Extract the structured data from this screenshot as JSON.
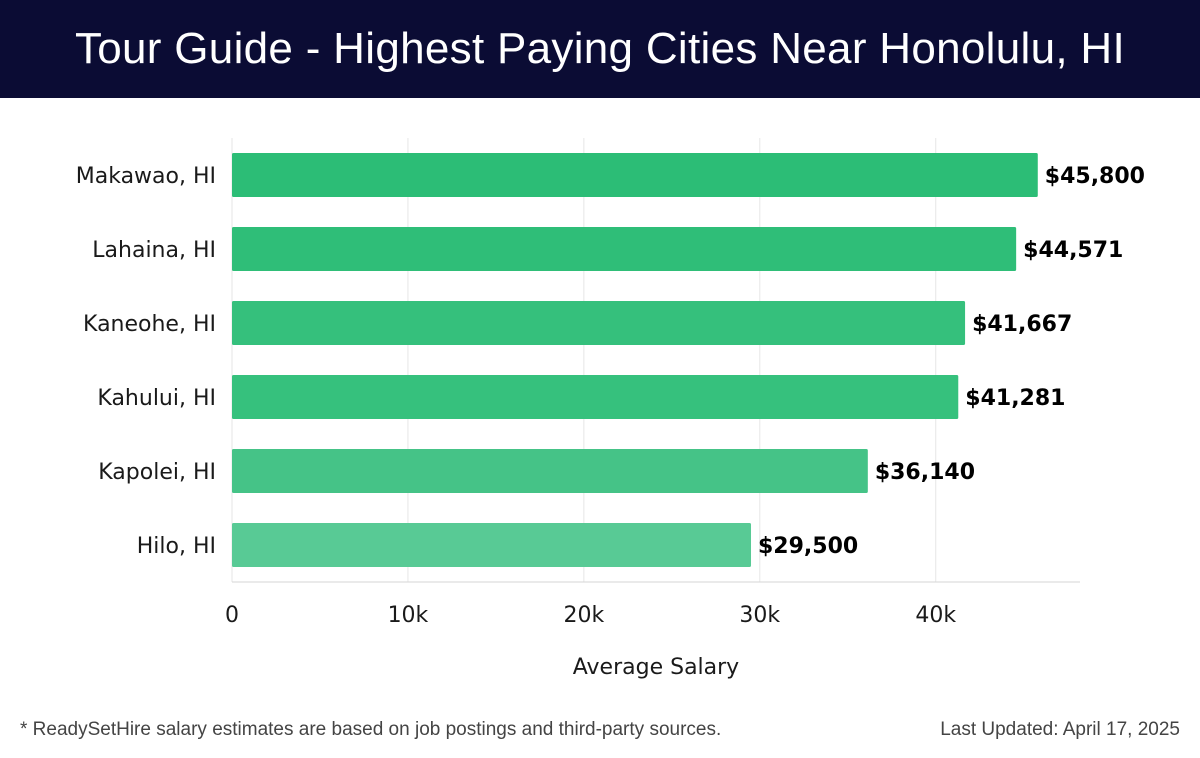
{
  "title": "Tour Guide - Highest Paying Cities Near Honolulu, HI",
  "chart_data": {
    "type": "bar",
    "orientation": "horizontal",
    "categories": [
      "Makawao, HI",
      "Lahaina, HI",
      "Kaneohe, HI",
      "Kahului, HI",
      "Kapolei, HI",
      "Hilo, HI"
    ],
    "values": [
      45800,
      44571,
      41667,
      41281,
      36140,
      29500
    ],
    "value_labels": [
      "$45,800",
      "$44,571",
      "$41,667",
      "$41,281",
      "$36,140",
      "$29,500"
    ],
    "xlabel": "Average Salary",
    "ylabel": "",
    "xlim": [
      0,
      48200
    ],
    "xticks": [
      0,
      10000,
      20000,
      30000,
      40000
    ],
    "xtick_labels": [
      "0",
      "10k",
      "20k",
      "30k",
      "40k"
    ],
    "grid": "vertical",
    "bar_colors": [
      "#2cbd76",
      "#2fbe78",
      "#35c07c",
      "#36c17d",
      "#45c387",
      "#58ca95"
    ]
  },
  "footer": {
    "note": "* ReadySetHire salary estimates are based on job postings and third-party sources.",
    "updated": "Last Updated: April 17, 2025"
  }
}
